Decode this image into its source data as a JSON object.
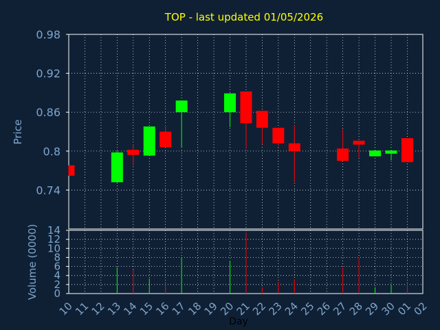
{
  "chart_data": {
    "type": "candlestick",
    "title": "TOP - last updated 01/05/2026",
    "xlabel": "Day",
    "ylabel_price": "Price",
    "ylabel_volume": "Volume (0000)",
    "x_ticks": [
      "10",
      "11",
      "12",
      "13",
      "14",
      "15",
      "16",
      "17",
      "18",
      "19",
      "20",
      "21",
      "22",
      "23",
      "24",
      "25",
      "26",
      "27",
      "28",
      "29",
      "30",
      "01",
      "02"
    ],
    "price_ticks": [
      "0.98",
      "0.92",
      "0.86",
      "0.8",
      "0.74"
    ],
    "price_tick_values": [
      0.98,
      0.92,
      0.86,
      0.8,
      0.74
    ],
    "price_range": [
      0.68,
      0.98
    ],
    "volume_ticks": [
      "14",
      "12",
      "10",
      "8",
      "6",
      "4",
      "2",
      "0"
    ],
    "volume_tick_values": [
      14,
      12,
      10,
      8,
      6,
      4,
      2,
      0
    ],
    "volume_range": [
      0,
      14
    ],
    "grid": true,
    "up_color": "#00ff00",
    "down_color": "#ff0000",
    "candles": [
      {
        "day": "10",
        "open": 0.778,
        "close": 0.762,
        "high": 0.778,
        "low": 0.762,
        "volume": 0
      },
      {
        "day": "13",
        "open": 0.752,
        "close": 0.798,
        "high": 0.8,
        "low": 0.75,
        "volume": 5.8
      },
      {
        "day": "14",
        "open": 0.802,
        "close": 0.794,
        "high": 0.81,
        "low": 0.778,
        "volume": 5.3
      },
      {
        "day": "15",
        "open": 0.793,
        "close": 0.838,
        "high": 0.838,
        "low": 0.793,
        "volume": 3.3
      },
      {
        "day": "16",
        "open": 0.83,
        "close": 0.806,
        "high": 0.84,
        "low": 0.806,
        "volume": 1.8
      },
      {
        "day": "17",
        "open": 0.86,
        "close": 0.878,
        "high": 0.878,
        "low": 0.805,
        "volume": 8.0
      },
      {
        "day": "20",
        "open": 0.86,
        "close": 0.889,
        "high": 0.889,
        "low": 0.837,
        "volume": 7.3
      },
      {
        "day": "21",
        "open": 0.892,
        "close": 0.843,
        "high": 0.892,
        "low": 0.804,
        "volume": 13.5
      },
      {
        "day": "22",
        "open": 0.862,
        "close": 0.836,
        "high": 0.862,
        "low": 0.81,
        "volume": 1.4
      },
      {
        "day": "23",
        "open": 0.836,
        "close": 0.812,
        "high": 0.836,
        "low": 0.808,
        "volume": 2.6
      },
      {
        "day": "24",
        "open": 0.812,
        "close": 0.8,
        "high": 0.84,
        "low": 0.752,
        "volume": 3.1
      },
      {
        "day": "27",
        "open": 0.804,
        "close": 0.785,
        "high": 0.834,
        "low": 0.785,
        "volume": 5.7
      },
      {
        "day": "28",
        "open": 0.816,
        "close": 0.81,
        "high": 0.816,
        "low": 0.79,
        "volume": 8.0
      },
      {
        "day": "29",
        "open": 0.792,
        "close": 0.801,
        "high": 0.801,
        "low": 0.792,
        "volume": 1.4
      },
      {
        "day": "30",
        "open": 0.796,
        "close": 0.801,
        "high": 0.801,
        "low": 0.786,
        "volume": 2.0
      },
      {
        "day": "01",
        "open": 0.82,
        "close": 0.783,
        "high": 0.82,
        "low": 0.783,
        "volume": 2.0
      }
    ]
  }
}
